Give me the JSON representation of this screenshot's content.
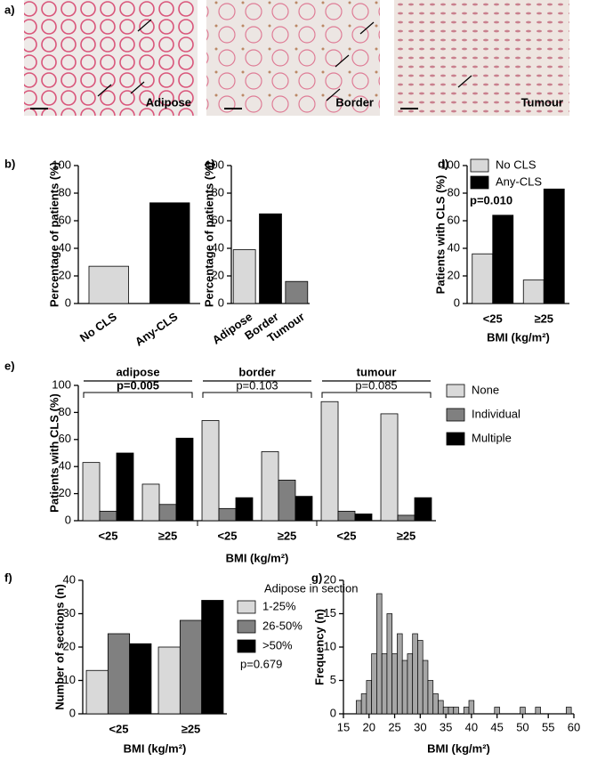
{
  "panel_a": {
    "label": "a)",
    "images": [
      "Adipose",
      "Border",
      "Tumour"
    ]
  },
  "chart_data": [
    {
      "label": "b)",
      "type": "bar",
      "ylabel": "Percentage of patients (%)",
      "categories": [
        "No CLS",
        "Any-CLS"
      ],
      "values": [
        27,
        73
      ],
      "colors": [
        "#d9d9d9",
        "#000000"
      ],
      "ylim": [
        0,
        100
      ],
      "yticks": [
        0,
        20,
        40,
        60,
        80,
        100
      ],
      "rotate_xlabels": true
    },
    {
      "label": "c)",
      "type": "bar",
      "ylabel": "Percentage of patients (%)",
      "categories": [
        "Adipose",
        "Border",
        "Tumour"
      ],
      "values": [
        39,
        65,
        16
      ],
      "colors": [
        "#d9d9d9",
        "#000000",
        "#808080"
      ],
      "ylim": [
        0,
        100
      ],
      "yticks": [
        0,
        20,
        40,
        60,
        80,
        100
      ],
      "rotate_xlabels": true
    },
    {
      "label": "d)",
      "type": "bar",
      "ylabel": "Patients with CLS (%)",
      "xlabel": "BMI (kg/m²)",
      "categories": [
        "<25",
        "≥25"
      ],
      "series": [
        {
          "name": "No CLS",
          "color": "#d9d9d9",
          "values": [
            36,
            17
          ]
        },
        {
          "name": "Any-CLS",
          "color": "#000000",
          "values": [
            64,
            83
          ]
        }
      ],
      "annotation": "p=0.010",
      "ylim": [
        0,
        100
      ],
      "yticks": [
        0,
        20,
        40,
        60,
        80,
        100
      ],
      "legend": "top-left"
    },
    {
      "label": "e)",
      "type": "bar",
      "ylabel": "Patients with CLS (%)",
      "xlabel": "BMI (kg/m²)",
      "categories": [
        "<25",
        "≥25",
        "<25",
        "≥25",
        "<25",
        "≥25"
      ],
      "groups": [
        {
          "name": "adipose",
          "p": "p=0.005",
          "bold": true
        },
        {
          "name": "border",
          "p": "p=0.103",
          "bold": false
        },
        {
          "name": "tumour",
          "p": "p=0.085",
          "bold": false
        }
      ],
      "series": [
        {
          "name": "None",
          "color": "#d9d9d9",
          "values": [
            43,
            27,
            74,
            51,
            88,
            79
          ]
        },
        {
          "name": "Individual",
          "color": "#808080",
          "values": [
            7,
            12,
            9,
            30,
            7,
            4
          ]
        },
        {
          "name": "Multiple",
          "color": "#000000",
          "values": [
            50,
            61,
            17,
            18,
            5,
            17
          ]
        }
      ],
      "ylim": [
        0,
        100
      ],
      "yticks": [
        0,
        20,
        40,
        60,
        80,
        100
      ],
      "legend": "right"
    },
    {
      "label": "f)",
      "type": "bar",
      "ylabel": "Number of sections (n)",
      "xlabel": "BMI (kg/m²)",
      "categories": [
        "<25",
        "≥25"
      ],
      "legend_title": "Adipose in section",
      "series": [
        {
          "name": "1-25%",
          "color": "#d9d9d9",
          "values": [
            13,
            20
          ]
        },
        {
          "name": "26-50%",
          "color": "#808080",
          "values": [
            24,
            28
          ]
        },
        {
          "name": ">50%",
          "color": "#000000",
          "values": [
            21,
            34
          ]
        }
      ],
      "annotation": "p=0.679",
      "ylim": [
        0,
        40
      ],
      "yticks": [
        0,
        10,
        20,
        30,
        40
      ],
      "legend": "right"
    },
    {
      "label": "g)",
      "type": "histogram",
      "ylabel": "Frequency (n)",
      "xlabel": "BMI (kg/m²)",
      "color": "#a6a6a6",
      "bins": [
        17.5,
        18.5,
        19.5,
        20.5,
        21.5,
        22.5,
        23.5,
        24.5,
        25.5,
        26.5,
        27.5,
        28.5,
        29.5,
        30.5,
        31.5,
        32.5,
        33.5,
        34.5,
        35.5,
        36.5,
        37.5,
        38.5,
        39.5,
        40.5,
        41.5,
        42.5,
        43.5,
        44.5,
        45.5,
        46.5,
        47.5,
        48.5,
        49.5,
        50.5,
        51.5,
        52.5,
        53.5,
        54.5,
        55.5,
        56.5,
        57.5,
        58.5,
        59.5
      ],
      "counts": [
        2,
        3,
        5,
        9,
        18,
        9,
        15,
        9,
        12,
        8,
        9,
        12,
        11,
        8,
        5,
        3,
        2,
        1,
        1,
        1,
        0,
        1,
        2,
        0,
        0,
        0,
        0,
        1,
        0,
        0,
        0,
        0,
        1,
        0,
        0,
        1,
        0,
        0,
        0,
        0,
        0,
        1
      ],
      "xlim": [
        15,
        60
      ],
      "xticks": [
        15,
        20,
        25,
        30,
        35,
        40,
        45,
        50,
        55,
        60
      ],
      "ylim": [
        0,
        20
      ],
      "yticks": [
        0,
        5,
        10,
        15,
        20
      ]
    }
  ]
}
